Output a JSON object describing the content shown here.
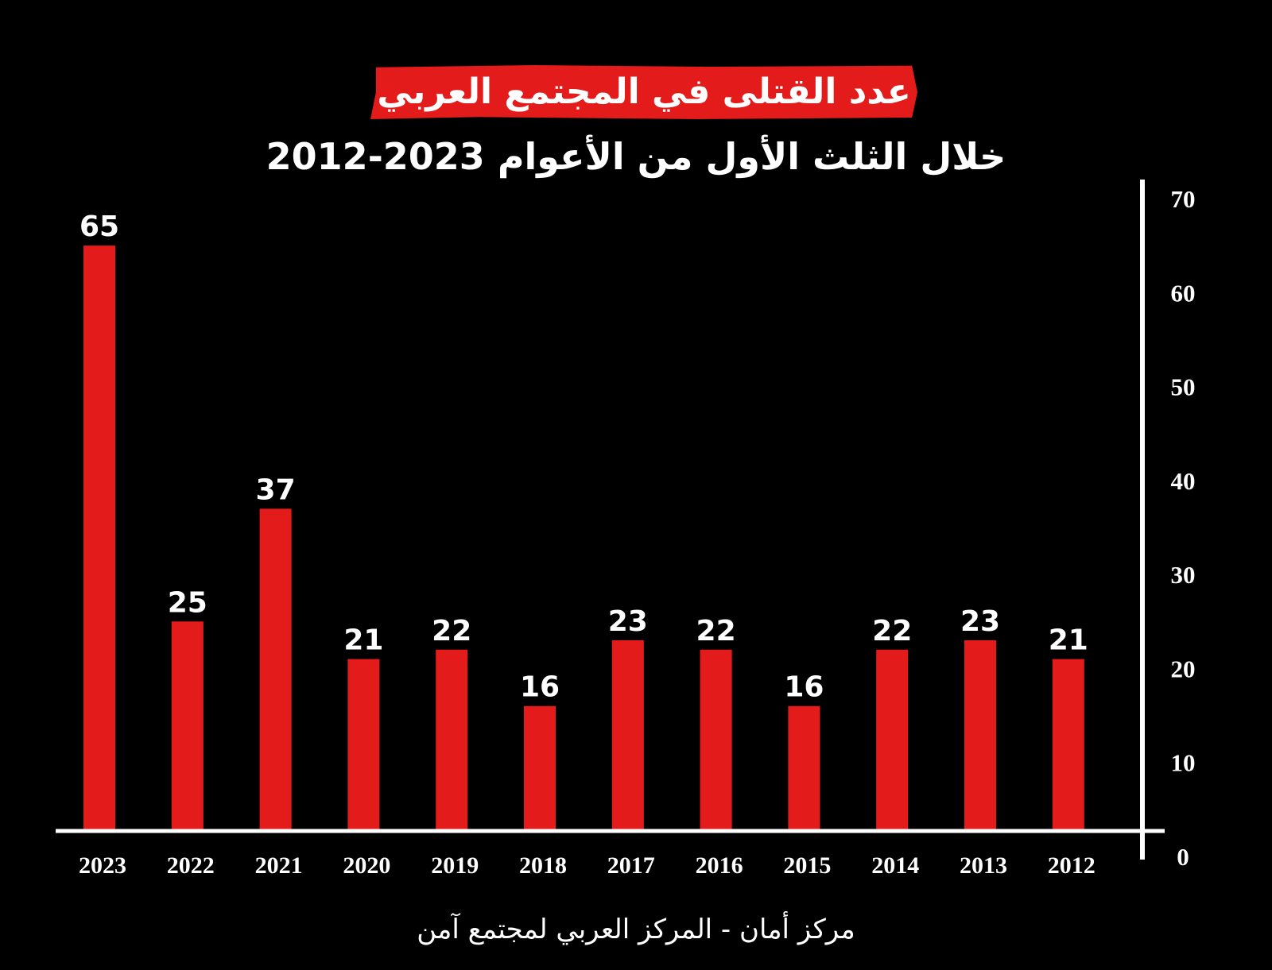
{
  "colors": {
    "background": "#000000",
    "bar": "#e31b1b",
    "text": "#ffffff",
    "axis": "#ffffff"
  },
  "title": "عدد القتلى في المجتمع العربي",
  "subtitle": "خلال الثلث الأول من الأعوام 2023-2012",
  "source": "مركز أمان  -  المركز العربي لمجتمع آمن",
  "chart_data": {
    "type": "bar",
    "categories": [
      "2023",
      "2022",
      "2021",
      "2020",
      "2019",
      "2018",
      "2017",
      "2016",
      "2015",
      "2014",
      "2013",
      "2012"
    ],
    "values": [
      65,
      25,
      37,
      21,
      22,
      16,
      23,
      22,
      16,
      22,
      23,
      21
    ],
    "ylim": [
      0,
      70
    ],
    "yticks": [
      0,
      10,
      20,
      30,
      40,
      50,
      60,
      70
    ],
    "y_axis_side": "right",
    "data_labels": true,
    "grid": false
  }
}
